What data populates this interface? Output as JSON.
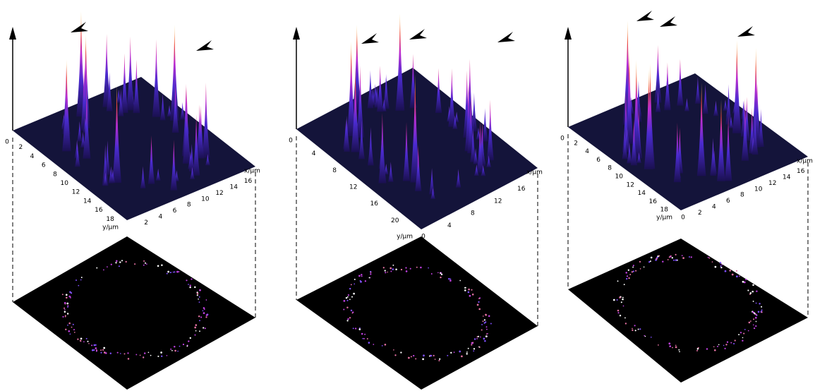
{
  "panels": [
    {
      "z_origin": "0",
      "y_ticks": [
        2,
        4,
        6,
        8,
        10,
        12,
        14,
        16,
        18
      ],
      "x_ticks": [
        2,
        4,
        6,
        8,
        10,
        12,
        14,
        16
      ],
      "x_label": "x/μm",
      "y_label": "y/μm"
    },
    {
      "z_origin": "0",
      "x_origin": "0",
      "y_ticks": [
        4,
        8,
        12,
        16,
        20
      ],
      "x_ticks": [
        4,
        8,
        12,
        16
      ],
      "x_label": "x/μm",
      "y_label": "y/μm"
    },
    {
      "z_origin": "0",
      "x_origin": "0",
      "y_ticks": [
        2,
        4,
        6,
        8,
        10,
        12,
        14,
        16,
        18
      ],
      "x_ticks": [
        2,
        4,
        6,
        8,
        10,
        12,
        14,
        16
      ],
      "x_label": "x/μm",
      "y_label": "y/μm"
    }
  ]
}
